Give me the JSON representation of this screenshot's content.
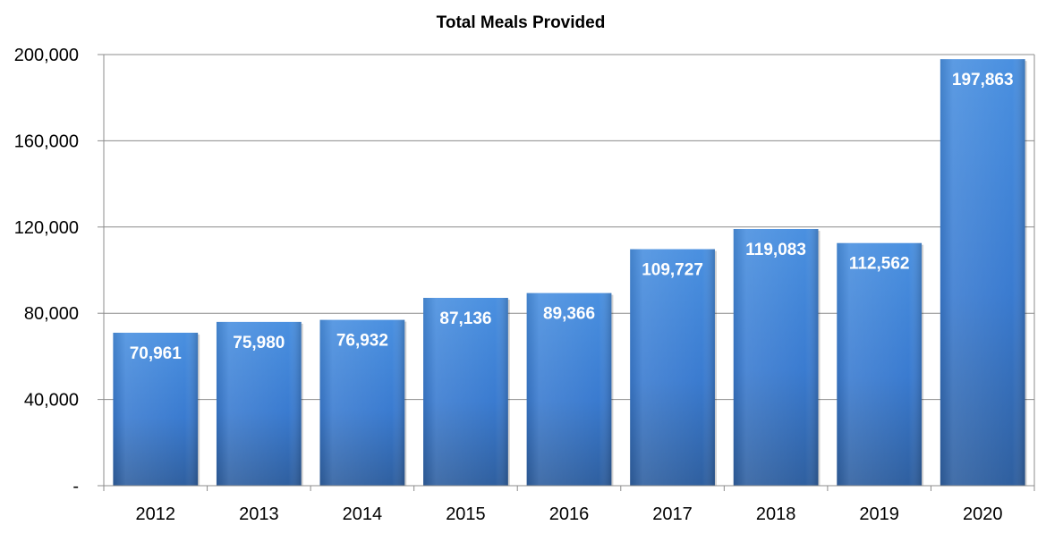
{
  "chart_data": {
    "type": "bar",
    "title": "Total Meals Provided",
    "xlabel": "",
    "ylabel": "",
    "categories": [
      "2012",
      "2013",
      "2014",
      "2015",
      "2016",
      "2017",
      "2018",
      "2019",
      "2020"
    ],
    "values": [
      70961,
      75980,
      76932,
      87136,
      89366,
      109727,
      119083,
      112562,
      197863
    ],
    "data_labels": [
      "70,961",
      "75,980",
      "76,932",
      "87,136",
      "89,366",
      "109,727",
      "119,083",
      "112,562",
      "197,863"
    ],
    "ylim": [
      0,
      200000
    ],
    "yticks": [
      0,
      40000,
      80000,
      120000,
      160000,
      200000
    ],
    "ytick_labels": [
      "-",
      "40,000",
      "80,000",
      "120,000",
      "160,000",
      "200,000"
    ],
    "grid": true,
    "legend": "none",
    "colors": {
      "bar_light": "#4a90e0",
      "bar_mid": "#3a7bd0",
      "bar_dark": "#2f5f9f",
      "grid": "#8c8c8c",
      "axis": "#8c8c8c",
      "label": "#ffffff"
    }
  }
}
